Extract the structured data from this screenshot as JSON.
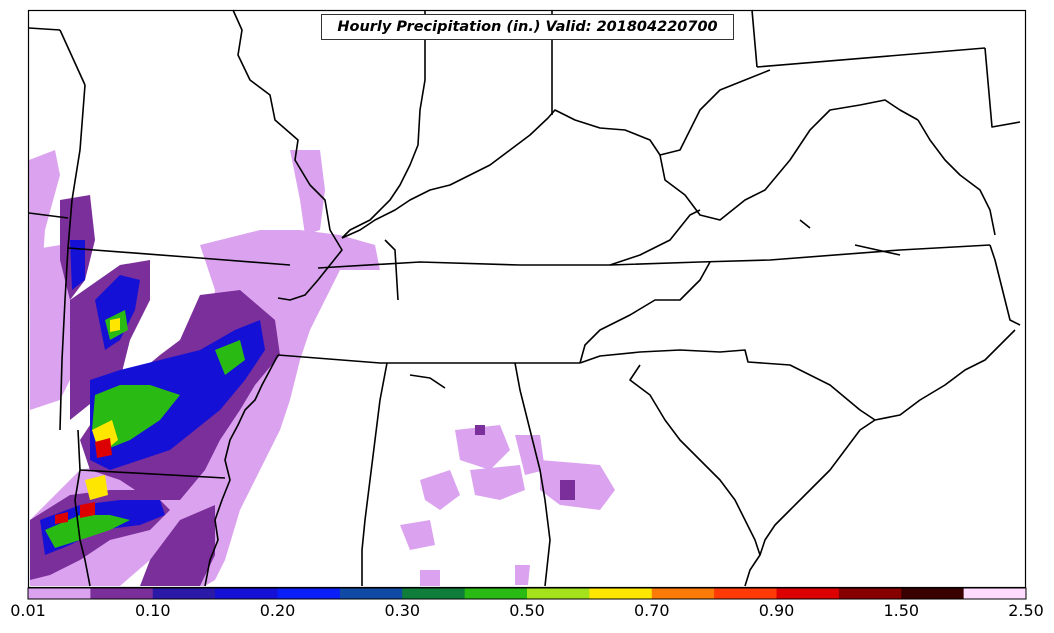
{
  "title": "Hourly Precipitation (in.) Valid: 201804220700",
  "colorbar": {
    "colors": [
      "#dba3ef",
      "#7b2f9a",
      "#2a1aa7",
      "#1410d6",
      "#0a1ef7",
      "#114aa4",
      "#0f7e3b",
      "#2aba14",
      "#a4e21c",
      "#ffe600",
      "#fb7a08",
      "#ff3a06",
      "#dc0000",
      "#870000",
      "#3a0000",
      "#ffdcff"
    ],
    "labels": [
      "0.01",
      "0.10",
      "0.20",
      "0.30",
      "0.50",
      "0.70",
      "0.90",
      "1.50",
      "2.50"
    ]
  }
}
